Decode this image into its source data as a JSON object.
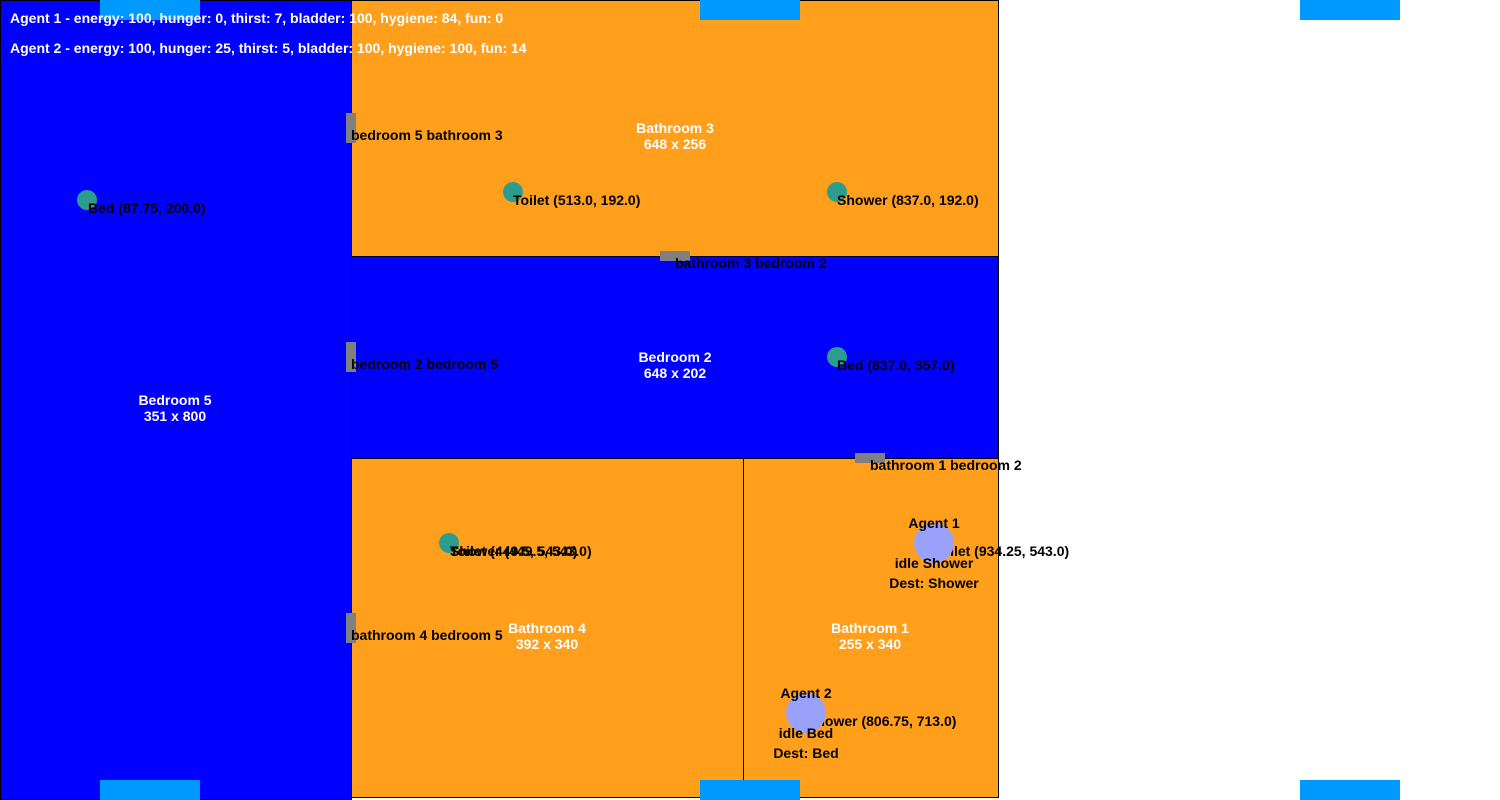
{
  "colors": {
    "bedroom": "#0000ff",
    "bathroom": "#ff9f1c",
    "door": "#808080",
    "object": "#2a9d8f",
    "agent": "#9aa1fb",
    "spawn": "#0099ff"
  },
  "status": {
    "agent1": "Agent 1 - energy: 100, hunger: 0, thirst: 7, bladder: 100, hygiene: 84, fun: 0",
    "agent2": "Agent 2 - energy: 100, hunger: 25, thirst: 5, bladder: 100, hygiene: 100, fun: 14"
  },
  "rooms": {
    "bedroom5": {
      "name": "Bedroom 5",
      "size": "351 x 800"
    },
    "bathroom3": {
      "name": "Bathroom 3",
      "size": "648 x 256"
    },
    "bedroom2": {
      "name": "Bedroom 2",
      "size": "648 x 202"
    },
    "bathroom4": {
      "name": "Bathroom 4",
      "size": "392 x 340"
    },
    "bathroom1": {
      "name": "Bathroom 1",
      "size": "255 x 340"
    }
  },
  "doors": {
    "d1": "bedroom 5 bathroom 3",
    "d2": "bathroom 3 bedroom 2",
    "d3": "bedroom 2 bedroom 5",
    "d4": "bathroom 1 bedroom 2",
    "d5": "bathroom 4 bedroom 5"
  },
  "objects": {
    "bed5": "Bed (87.75, 200.0)",
    "toilet3": "Toilet (513.0, 192.0)",
    "shower3": "Shower (837.0, 192.0)",
    "bed2": "Bed (837.0, 357.0)",
    "toilet4": "Toilet (449.5, 543.0)",
    "shower4": "Shower (449.5, 543.0)",
    "toilet1": "Toilet (934.25, 543.0)",
    "shower1": "Shower (806.75, 713.0)"
  },
  "agents": {
    "a1": {
      "name": "Agent 1",
      "state": "idle Shower",
      "dest": "Dest: Shower"
    },
    "a2": {
      "name": "Agent 2",
      "state": "idle Bed",
      "dest": "Dest: Bed"
    }
  }
}
